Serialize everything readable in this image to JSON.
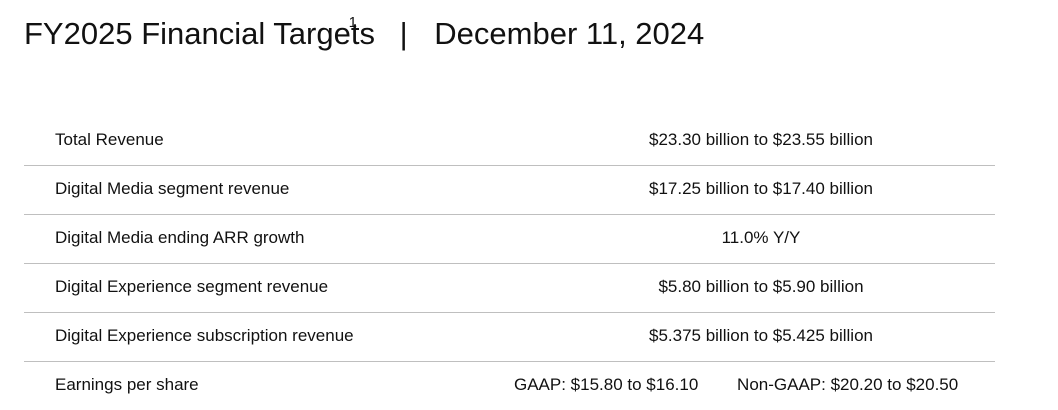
{
  "header": {
    "title": "FY2025 Financial Targets",
    "footnote_marker": "1",
    "separator": "|",
    "date": "December 11, 2024"
  },
  "targets": [
    {
      "label": "Total Revenue",
      "value": "$23.30 billion to $23.55 billion"
    },
    {
      "label": "Digital Media segment revenue",
      "value": "$17.25 billion to $17.40 billion"
    },
    {
      "label": "Digital Media ending ARR growth",
      "value": "11.0% Y/Y"
    },
    {
      "label": "Digital Experience segment revenue",
      "value": "$5.80 billion to $5.90 billion"
    },
    {
      "label": "Digital Experience subscription revenue",
      "value": "$5.375 billion to $5.425 billion"
    }
  ],
  "eps": {
    "label": "Earnings per share",
    "gaap": "GAAP: $15.80 to $16.10",
    "non_gaap": "Non-GAAP: $20.20 to $20.50"
  }
}
